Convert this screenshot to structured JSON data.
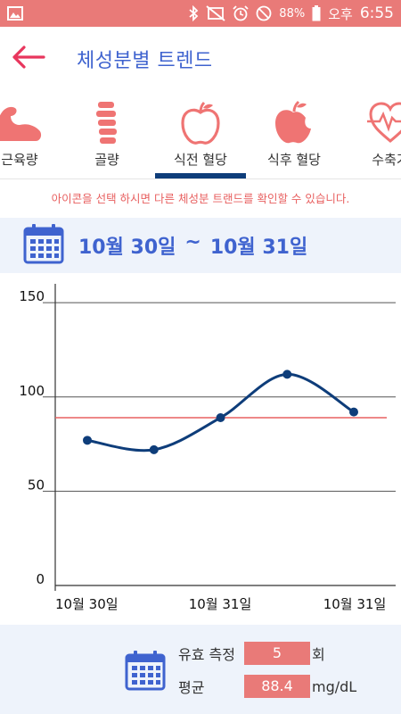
{
  "status_bar": {
    "battery": "88%",
    "carrier": "오후",
    "time": "6:55",
    "background": "#e97a78"
  },
  "header": {
    "title": "체성분별 트렌드",
    "back_icon": "arrow-left-icon",
    "back_color": "#e8365d"
  },
  "tabs": [
    {
      "label": "근육량",
      "icon": "muscle-icon"
    },
    {
      "label": "골량",
      "icon": "spine-icon"
    },
    {
      "label": "식전 혈당",
      "icon": "apple-outline-icon",
      "selected": true
    },
    {
      "label": "식후 혈당",
      "icon": "apple-bitten-icon"
    },
    {
      "label": "수축기",
      "icon": "heart-pulse-icon"
    }
  ],
  "hint": "아이콘을 선택 하시면 다른 체성분 트랜드를 확인할 수 있습니다.",
  "date_range": {
    "start": "10월 30일",
    "separator": "~",
    "end": "10월 31일"
  },
  "chart_data": {
    "type": "line",
    "x_tick_labels": [
      "10월 30일",
      "10월 31일",
      "10월 31일"
    ],
    "ylim": [
      0,
      160
    ],
    "y_ticks": [
      0,
      50,
      100,
      150
    ],
    "series": [
      {
        "values": [
          77,
          72,
          89,
          112,
          92
        ],
        "color": "#0e3d7a",
        "smooth": true
      }
    ],
    "reference_line": {
      "value": 89,
      "color": "#e86060"
    },
    "grid": "horizontal"
  },
  "summary": {
    "count_label": "유효 측정",
    "count_value": "5",
    "count_unit": "회",
    "avg_label": "평균",
    "avg_value": "88.4",
    "avg_unit": "mg/dL"
  },
  "colors": {
    "accent_blue": "#3f63cf",
    "coral": "#e97a78",
    "navy": "#0e3d7a"
  }
}
